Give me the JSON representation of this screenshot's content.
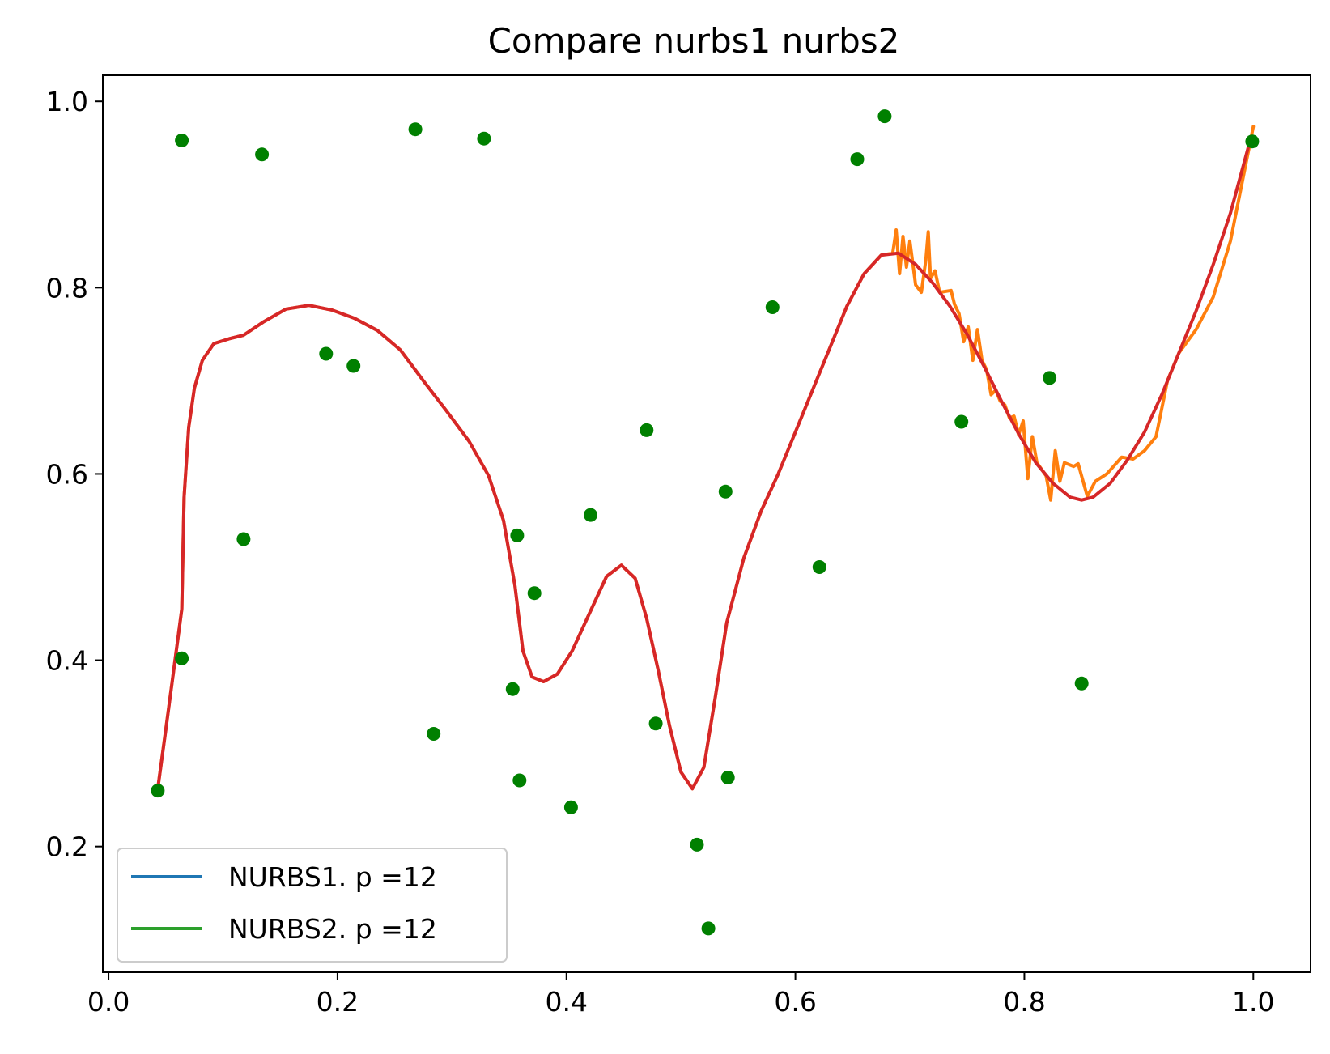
{
  "chart_data": {
    "type": "line",
    "title": "Compare nurbs1 nurbs2",
    "xlabel": "",
    "ylabel": "",
    "xlim": [
      -0.005,
      1.05
    ],
    "ylim": [
      0.065,
      1.028
    ],
    "xticks": [
      0.0,
      0.2,
      0.4,
      0.6,
      0.8,
      1.0
    ],
    "yticks": [
      0.2,
      0.4,
      0.6,
      0.8,
      1.0
    ],
    "xtick_labels": [
      "0.0",
      "0.2",
      "0.4",
      "0.6",
      "0.8",
      "1.0"
    ],
    "ytick_labels": [
      "0.2",
      "0.4",
      "0.6",
      "0.8",
      "1.0"
    ],
    "grid": false,
    "legend_position": "lower-left",
    "colors": {
      "nurbs1": "#1f77b4",
      "nurbs2": "#2ca02c",
      "orange_curve": "#ff7f0e",
      "red_curve": "#d62728",
      "points": "#008000"
    },
    "legend": [
      {
        "label": "NURBS1. p =12",
        "color": "#1f77b4"
      },
      {
        "label": "NURBS2. p =12",
        "color": "#2ca02c"
      }
    ],
    "scatter_points": [
      [
        0.043,
        0.26
      ],
      [
        0.064,
        0.958
      ],
      [
        0.064,
        0.402
      ],
      [
        0.118,
        0.53
      ],
      [
        0.134,
        0.943
      ],
      [
        0.19,
        0.729
      ],
      [
        0.214,
        0.716
      ],
      [
        0.268,
        0.97
      ],
      [
        0.284,
        0.321
      ],
      [
        0.328,
        0.96
      ],
      [
        0.353,
        0.369
      ],
      [
        0.357,
        0.534
      ],
      [
        0.359,
        0.271
      ],
      [
        0.372,
        0.472
      ],
      [
        0.404,
        0.242
      ],
      [
        0.421,
        0.556
      ],
      [
        0.47,
        0.647
      ],
      [
        0.478,
        0.332
      ],
      [
        0.514,
        0.202
      ],
      [
        0.524,
        0.112
      ],
      [
        0.539,
        0.581
      ],
      [
        0.541,
        0.274
      ],
      [
        0.58,
        0.779
      ],
      [
        0.621,
        0.5
      ],
      [
        0.654,
        0.938
      ],
      [
        0.678,
        0.984
      ],
      [
        0.745,
        0.656
      ],
      [
        0.822,
        0.703
      ],
      [
        0.85,
        0.375
      ],
      [
        0.999,
        0.957
      ]
    ],
    "series": [
      {
        "key": "orange_curve",
        "values": [
          [
            0.043,
            0.262
          ],
          [
            0.057,
            0.39
          ],
          [
            0.064,
            0.455
          ],
          [
            0.066,
            0.575
          ],
          [
            0.07,
            0.65
          ],
          [
            0.075,
            0.692
          ],
          [
            0.082,
            0.722
          ],
          [
            0.092,
            0.74
          ],
          [
            0.105,
            0.745
          ],
          [
            0.118,
            0.749
          ],
          [
            0.135,
            0.763
          ],
          [
            0.155,
            0.777
          ],
          [
            0.175,
            0.781
          ],
          [
            0.195,
            0.776
          ],
          [
            0.215,
            0.767
          ],
          [
            0.235,
            0.754
          ],
          [
            0.255,
            0.733
          ],
          [
            0.275,
            0.7
          ],
          [
            0.295,
            0.668
          ],
          [
            0.315,
            0.635
          ],
          [
            0.332,
            0.598
          ],
          [
            0.345,
            0.55
          ],
          [
            0.355,
            0.48
          ],
          [
            0.362,
            0.41
          ],
          [
            0.37,
            0.382
          ],
          [
            0.38,
            0.377
          ],
          [
            0.392,
            0.385
          ],
          [
            0.405,
            0.41
          ],
          [
            0.42,
            0.45
          ],
          [
            0.435,
            0.49
          ],
          [
            0.448,
            0.502
          ],
          [
            0.46,
            0.488
          ],
          [
            0.47,
            0.445
          ],
          [
            0.48,
            0.39
          ],
          [
            0.49,
            0.33
          ],
          [
            0.5,
            0.28
          ],
          [
            0.51,
            0.262
          ],
          [
            0.52,
            0.285
          ],
          [
            0.53,
            0.36
          ],
          [
            0.54,
            0.44
          ],
          [
            0.555,
            0.51
          ],
          [
            0.57,
            0.56
          ],
          [
            0.585,
            0.6
          ],
          [
            0.6,
            0.645
          ],
          [
            0.615,
            0.69
          ],
          [
            0.63,
            0.735
          ],
          [
            0.645,
            0.78
          ],
          [
            0.66,
            0.815
          ],
          [
            0.675,
            0.835
          ],
          [
            0.685,
            0.837
          ],
          [
            0.688,
            0.862
          ],
          [
            0.691,
            0.815
          ],
          [
            0.694,
            0.855
          ],
          [
            0.697,
            0.822
          ],
          [
            0.7,
            0.85
          ],
          [
            0.705,
            0.803
          ],
          [
            0.71,
            0.795
          ],
          [
            0.714,
            0.83
          ],
          [
            0.716,
            0.86
          ],
          [
            0.718,
            0.81
          ],
          [
            0.722,
            0.818
          ],
          [
            0.726,
            0.795
          ],
          [
            0.736,
            0.797
          ],
          [
            0.739,
            0.782
          ],
          [
            0.743,
            0.772
          ],
          [
            0.747,
            0.742
          ],
          [
            0.751,
            0.758
          ],
          [
            0.755,
            0.722
          ],
          [
            0.759,
            0.755
          ],
          [
            0.763,
            0.722
          ],
          [
            0.767,
            0.712
          ],
          [
            0.771,
            0.685
          ],
          [
            0.775,
            0.69
          ],
          [
            0.779,
            0.678
          ],
          [
            0.783,
            0.674
          ],
          [
            0.787,
            0.66
          ],
          [
            0.791,
            0.662
          ],
          [
            0.795,
            0.642
          ],
          [
            0.799,
            0.657
          ],
          [
            0.803,
            0.595
          ],
          [
            0.807,
            0.64
          ],
          [
            0.811,
            0.612
          ],
          [
            0.815,
            0.605
          ],
          [
            0.819,
            0.598
          ],
          [
            0.823,
            0.572
          ],
          [
            0.827,
            0.625
          ],
          [
            0.831,
            0.592
          ],
          [
            0.835,
            0.612
          ],
          [
            0.839,
            0.61
          ],
          [
            0.843,
            0.608
          ],
          [
            0.847,
            0.611
          ],
          [
            0.855,
            0.576
          ],
          [
            0.862,
            0.592
          ],
          [
            0.872,
            0.6
          ],
          [
            0.885,
            0.618
          ],
          [
            0.895,
            0.616
          ],
          [
            0.905,
            0.625
          ],
          [
            0.915,
            0.64
          ],
          [
            0.925,
            0.7
          ],
          [
            0.935,
            0.73
          ],
          [
            0.95,
            0.755
          ],
          [
            0.965,
            0.79
          ],
          [
            0.98,
            0.85
          ],
          [
            1.0,
            0.973
          ]
        ]
      },
      {
        "key": "red_curve",
        "values": [
          [
            0.043,
            0.262
          ],
          [
            0.05,
            0.325
          ],
          [
            0.057,
            0.39
          ],
          [
            0.064,
            0.455
          ],
          [
            0.066,
            0.575
          ],
          [
            0.07,
            0.65
          ],
          [
            0.075,
            0.692
          ],
          [
            0.082,
            0.722
          ],
          [
            0.092,
            0.74
          ],
          [
            0.105,
            0.745
          ],
          [
            0.118,
            0.749
          ],
          [
            0.135,
            0.763
          ],
          [
            0.155,
            0.777
          ],
          [
            0.175,
            0.781
          ],
          [
            0.195,
            0.776
          ],
          [
            0.215,
            0.767
          ],
          [
            0.235,
            0.754
          ],
          [
            0.255,
            0.733
          ],
          [
            0.275,
            0.7
          ],
          [
            0.295,
            0.668
          ],
          [
            0.315,
            0.635
          ],
          [
            0.332,
            0.598
          ],
          [
            0.345,
            0.55
          ],
          [
            0.355,
            0.48
          ],
          [
            0.362,
            0.41
          ],
          [
            0.37,
            0.382
          ],
          [
            0.38,
            0.377
          ],
          [
            0.392,
            0.385
          ],
          [
            0.405,
            0.41
          ],
          [
            0.42,
            0.45
          ],
          [
            0.435,
            0.49
          ],
          [
            0.448,
            0.502
          ],
          [
            0.46,
            0.488
          ],
          [
            0.47,
            0.445
          ],
          [
            0.48,
            0.39
          ],
          [
            0.49,
            0.33
          ],
          [
            0.5,
            0.28
          ],
          [
            0.51,
            0.262
          ],
          [
            0.52,
            0.285
          ],
          [
            0.53,
            0.36
          ],
          [
            0.54,
            0.44
          ],
          [
            0.555,
            0.51
          ],
          [
            0.57,
            0.56
          ],
          [
            0.585,
            0.6
          ],
          [
            0.6,
            0.645
          ],
          [
            0.615,
            0.69
          ],
          [
            0.63,
            0.735
          ],
          [
            0.645,
            0.78
          ],
          [
            0.66,
            0.815
          ],
          [
            0.675,
            0.835
          ],
          [
            0.69,
            0.837
          ],
          [
            0.705,
            0.825
          ],
          [
            0.72,
            0.805
          ],
          [
            0.735,
            0.78
          ],
          [
            0.75,
            0.75
          ],
          [
            0.765,
            0.715
          ],
          [
            0.78,
            0.678
          ],
          [
            0.795,
            0.643
          ],
          [
            0.81,
            0.612
          ],
          [
            0.825,
            0.59
          ],
          [
            0.84,
            0.575
          ],
          [
            0.85,
            0.572
          ],
          [
            0.86,
            0.575
          ],
          [
            0.875,
            0.59
          ],
          [
            0.89,
            0.615
          ],
          [
            0.905,
            0.645
          ],
          [
            0.92,
            0.685
          ],
          [
            0.935,
            0.73
          ],
          [
            0.95,
            0.775
          ],
          [
            0.965,
            0.825
          ],
          [
            0.98,
            0.88
          ],
          [
            0.997,
            0.957
          ]
        ]
      }
    ]
  }
}
